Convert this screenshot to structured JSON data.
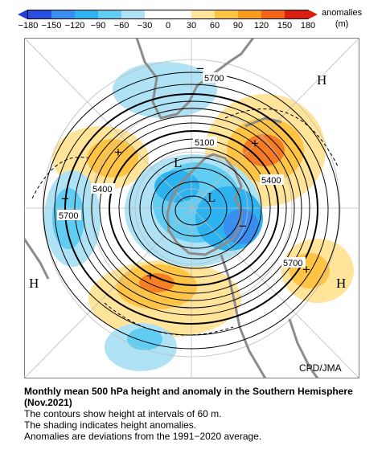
{
  "legend": {
    "units": "anomalies\n(m)",
    "ticks": [
      "-180",
      "-150",
      "-120",
      "-90",
      "-60",
      "-30",
      "0",
      "30",
      "60",
      "90",
      "120",
      "150",
      "180"
    ],
    "colors": [
      "#2750e0",
      "#3a8ef0",
      "#2db4f0",
      "#62cdf2",
      "#aee2f4",
      "#ffffff",
      "#ffffff",
      "#ffe49a",
      "#ffc444",
      "#fb9d1a",
      "#f2641a",
      "#d9200f"
    ]
  },
  "map": {
    "pressure_labels": [
      {
        "kind": "H",
        "text": "H"
      },
      {
        "kind": "H",
        "text": "H"
      },
      {
        "kind": "H",
        "text": "H"
      },
      {
        "kind": "L",
        "text": "L"
      },
      {
        "kind": "L",
        "text": "L"
      }
    ],
    "contour_labels": [
      "5700",
      "5100",
      "5400",
      "5400",
      "5700",
      "5700"
    ],
    "anomaly_signs": [
      "+",
      "+",
      "+",
      "+",
      "−",
      "−",
      "−"
    ],
    "credit": "CPD/JMA"
  },
  "caption": {
    "title": "Monthly mean 500 hPa height and anomaly in the Southern Hemisphere (Nov.2021)",
    "line1": "The contours show height at intervals of 60 m.",
    "line2": "The shading indicates height anomalies.",
    "line3": "Anomalies are deviations from the 1991−2020 average."
  }
}
